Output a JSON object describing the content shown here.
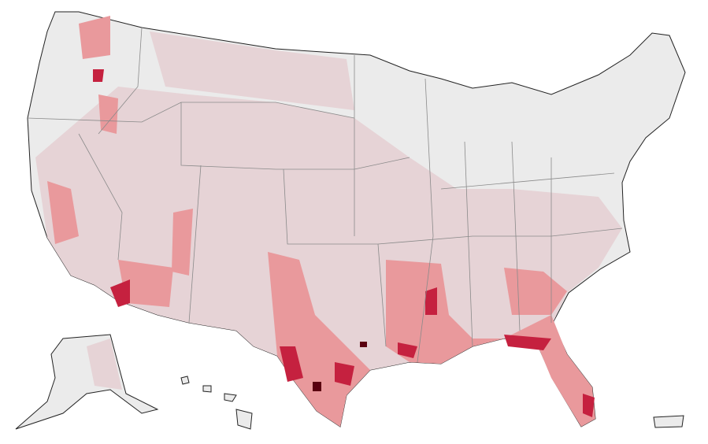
{
  "map": {
    "palette": [
      "#ebebeb",
      "#e6d3d6",
      "#e9999c",
      "#c5213f",
      "#5a0010"
    ]
  }
}
